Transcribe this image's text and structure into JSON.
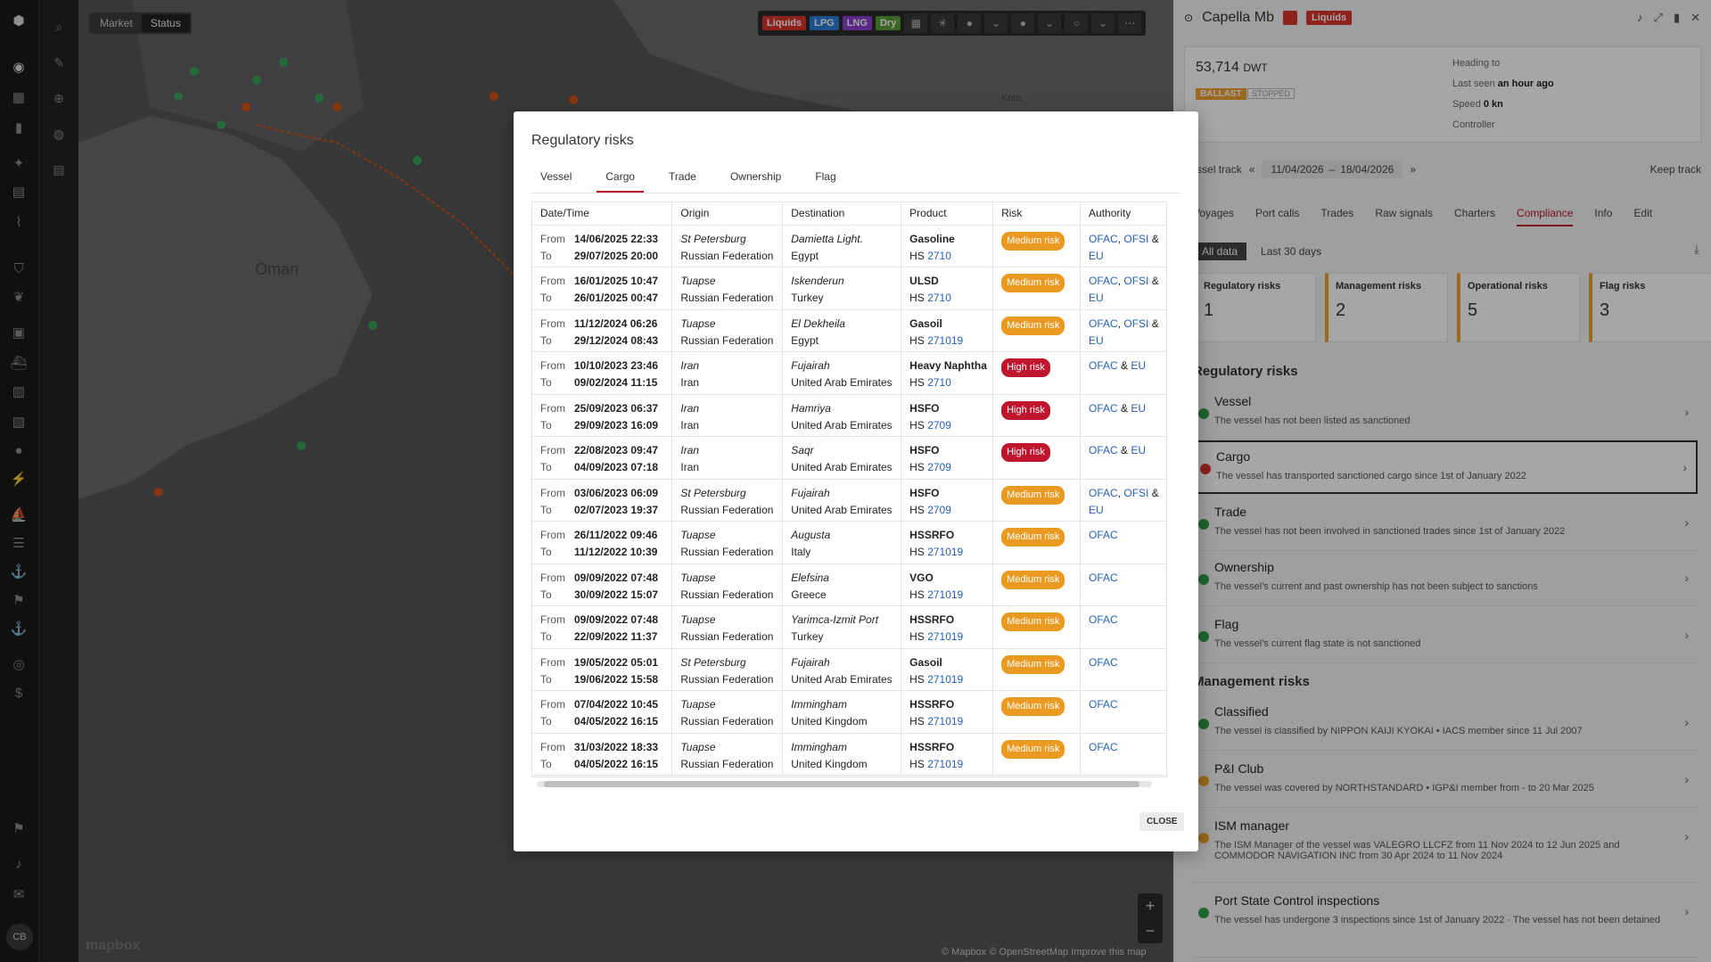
{
  "rail": {
    "avatar": "CB"
  },
  "map": {
    "toggle": [
      "Market",
      "Status"
    ],
    "active_toggle": "Status",
    "labels": {
      "country": "Oman",
      "town": "Kota"
    },
    "chips": [
      {
        "label": "Liquids",
        "color": "#d9342b"
      },
      {
        "label": "LPG",
        "color": "#2a7fd4"
      },
      {
        "label": "LNG",
        "color": "#8a3fd0"
      },
      {
        "label": "Dry",
        "color": "#5a9d3a"
      }
    ],
    "attribution": "© Mapbox © OpenStreetMap  Improve this map",
    "logo": "mapbox",
    "zoom_in": "+",
    "zoom_out": "−"
  },
  "panel": {
    "vessel_name": "Capella Mb",
    "segment_badge": "Liquids",
    "dwt_value": "53,714",
    "dwt_unit": "DWT",
    "status_ballast": "BALLAST",
    "status_stopped": "STOPPED",
    "heading_label": "Heading to",
    "last_seen_label": "Last seen",
    "last_seen_value": "an hour ago",
    "speed_label": "Speed",
    "speed_value": "0 kn",
    "controller_label": "Controller",
    "track_label": "Vessel track",
    "track_from": "11/04/2026",
    "track_sep": "–",
    "track_to": "18/04/2026",
    "keep_track": "Keep track",
    "tabs": [
      "Voyages",
      "Port calls",
      "Trades",
      "Raw signals",
      "Charters",
      "Compliance",
      "Info",
      "Edit"
    ],
    "active_tab": "Compliance",
    "filters": [
      "All data",
      "Last 30 days"
    ],
    "risk_cards": [
      {
        "title": "Regulatory risks",
        "count": "1"
      },
      {
        "title": "Management risks",
        "count": "2"
      },
      {
        "title": "Operational risks",
        "count": "5"
      },
      {
        "title": "Flag risks",
        "count": "3"
      }
    ],
    "reg_section": "Regulatory risks",
    "reg_items": [
      {
        "title": "Vessel",
        "desc": "The vessel has not been listed as sanctioned",
        "status": "ok"
      },
      {
        "title": "Cargo",
        "desc": "The vessel has transported sanctioned cargo since 1st of January 2022",
        "status": "risk"
      },
      {
        "title": "Trade",
        "desc": "The vessel has not been involved in sanctioned trades since 1st of January 2022",
        "status": "ok"
      },
      {
        "title": "Ownership",
        "desc": "The vessel's current and past ownership has not been subject to sanctions",
        "status": "ok"
      },
      {
        "title": "Flag",
        "desc": "The vessel's current flag state is not sanctioned",
        "status": "ok"
      }
    ],
    "mgmt_section": "Management risks",
    "mgmt_items": [
      {
        "title": "Classified",
        "desc": "The vessel is classified by NIPPON KAIJI KYOKAI  • IACS member  since 11 Jul 2007",
        "status": "ok"
      },
      {
        "title": "P&I Club",
        "desc": "The vessel was covered by NORTHSTANDARD  • IGP&I member  from - to 20 Mar 2025",
        "status": "warn"
      },
      {
        "title": "ISM manager",
        "desc": "The ISM Manager of the vessel was VALEGRO LLCFZ from 11 Nov 2024 to 12 Jun 2025 and COMMODOR NAVIGATION INC from 30 Apr 2024 to 11 Nov 2024",
        "status": "warn"
      },
      {
        "title": "Port State Control inspections",
        "desc": "The vessel has undergone 3 inspections since 1st of January 2022 · The vessel has not been detained",
        "status": "ok"
      }
    ]
  },
  "modal": {
    "title": "Regulatory risks",
    "tabs": [
      "Vessel",
      "Cargo",
      "Trade",
      "Ownership",
      "Flag"
    ],
    "active_tab": "Cargo",
    "columns": [
      "Date/Time",
      "Origin",
      "Destination",
      "Product",
      "Risk",
      "Authority"
    ],
    "from_label": "From",
    "to_label": "To",
    "rows": [
      {
        "from": "14/06/2025 22:33",
        "to": "29/07/2025 20:00",
        "origin_port": "St Petersburg",
        "origin_country": "Russian Federation",
        "dest_port": "Damietta Light.",
        "dest_country": "Egypt",
        "product": "Gasoline",
        "hs": "2710",
        "risk": "Medium risk",
        "level": "med",
        "auth": [
          "OFAC",
          "OFSI",
          "EU"
        ]
      },
      {
        "from": "16/01/2025 10:47",
        "to": "26/01/2025 00:47",
        "origin_port": "Tuapse",
        "origin_country": "Russian Federation",
        "dest_port": "Iskenderun",
        "dest_country": "Turkey",
        "product": "ULSD",
        "hs": "2710",
        "risk": "Medium risk",
        "level": "med",
        "auth": [
          "OFAC",
          "OFSI",
          "EU"
        ]
      },
      {
        "from": "11/12/2024 06:26",
        "to": "29/12/2024 08:43",
        "origin_port": "Tuapse",
        "origin_country": "Russian Federation",
        "dest_port": "El Dekheila",
        "dest_country": "Egypt",
        "product": "Gasoil",
        "hs": "271019",
        "risk": "Medium risk",
        "level": "med",
        "auth": [
          "OFAC",
          "OFSI",
          "EU"
        ]
      },
      {
        "from": "10/10/2023 23:46",
        "to": "09/02/2024 11:15",
        "origin_port": "Iran",
        "origin_country": "Iran",
        "dest_port": "Fujairah",
        "dest_country": "United Arab Emirates",
        "product": "Heavy Naphtha",
        "hs": "2710",
        "risk": "High risk",
        "level": "high",
        "auth": [
          "OFAC",
          "EU"
        ]
      },
      {
        "from": "25/09/2023 06:37",
        "to": "29/09/2023 16:09",
        "origin_port": "Iran",
        "origin_country": "Iran",
        "dest_port": "Hamriya",
        "dest_country": "United Arab Emirates",
        "product": "HSFO",
        "hs": "2709",
        "risk": "High risk",
        "level": "high",
        "auth": [
          "OFAC",
          "EU"
        ]
      },
      {
        "from": "22/08/2023 09:47",
        "to": "04/09/2023 07:18",
        "origin_port": "Iran",
        "origin_country": "Iran",
        "dest_port": "Saqr",
        "dest_country": "United Arab Emirates",
        "product": "HSFO",
        "hs": "2709",
        "risk": "High risk",
        "level": "high",
        "auth": [
          "OFAC",
          "EU"
        ]
      },
      {
        "from": "03/06/2023 06:09",
        "to": "02/07/2023 19:37",
        "origin_port": "St Petersburg",
        "origin_country": "Russian Federation",
        "dest_port": "Fujairah",
        "dest_country": "United Arab Emirates",
        "product": "HSFO",
        "hs": "2709",
        "risk": "Medium risk",
        "level": "med",
        "auth": [
          "OFAC",
          "OFSI",
          "EU"
        ]
      },
      {
        "from": "26/11/2022 09:46",
        "to": "11/12/2022 10:39",
        "origin_port": "Tuapse",
        "origin_country": "Russian Federation",
        "dest_port": "Augusta",
        "dest_country": "Italy",
        "product": "HSSRFO",
        "hs": "271019",
        "risk": "Medium risk",
        "level": "med",
        "auth": [
          "OFAC"
        ]
      },
      {
        "from": "09/09/2022 07:48",
        "to": "30/09/2022 15:07",
        "origin_port": "Tuapse",
        "origin_country": "Russian Federation",
        "dest_port": "Elefsina",
        "dest_country": "Greece",
        "product": "VGO",
        "hs": "271019",
        "risk": "Medium risk",
        "level": "med",
        "auth": [
          "OFAC"
        ]
      },
      {
        "from": "09/09/2022 07:48",
        "to": "22/09/2022 11:37",
        "origin_port": "Tuapse",
        "origin_country": "Russian Federation",
        "dest_port": "Yarimca-Izmit Port",
        "dest_country": "Turkey",
        "product": "HSSRFO",
        "hs": "271019",
        "risk": "Medium risk",
        "level": "med",
        "auth": [
          "OFAC"
        ]
      },
      {
        "from": "19/05/2022 05:01",
        "to": "19/06/2022 15:58",
        "origin_port": "St Petersburg",
        "origin_country": "Russian Federation",
        "dest_port": "Fujairah",
        "dest_country": "United Arab Emirates",
        "product": "Gasoil",
        "hs": "271019",
        "risk": "Medium risk",
        "level": "med",
        "auth": [
          "OFAC"
        ]
      },
      {
        "from": "07/04/2022 10:45",
        "to": "04/05/2022 16:15",
        "origin_port": "Tuapse",
        "origin_country": "Russian Federation",
        "dest_port": "Immingham",
        "dest_country": "United Kingdom",
        "product": "HSSRFO",
        "hs": "271019",
        "risk": "Medium risk",
        "level": "med",
        "auth": [
          "OFAC"
        ]
      },
      {
        "from": "31/03/2022 18:33",
        "to": "04/05/2022 16:15",
        "origin_port": "Tuapse",
        "origin_country": "Russian Federation",
        "dest_port": "Immingham",
        "dest_country": "United Kingdom",
        "product": "HSSRFO",
        "hs": "271019",
        "risk": "Medium risk",
        "level": "med",
        "auth": [
          "OFAC"
        ]
      }
    ],
    "hs_prefix": "HS",
    "close_label": "CLOSE"
  }
}
